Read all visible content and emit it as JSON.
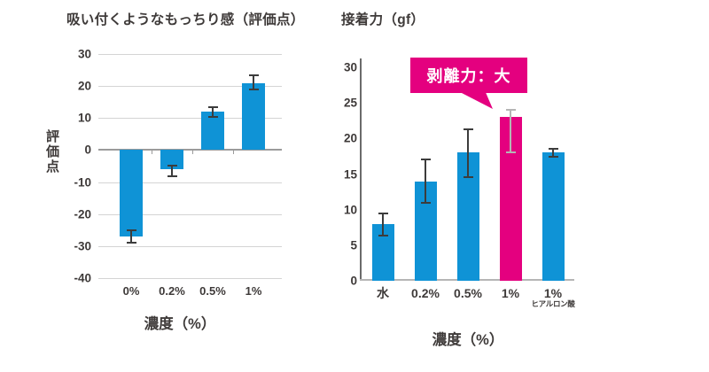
{
  "colors": {
    "blue": "#0f93d6",
    "pink": "#e4007f",
    "text": "#3e3a39",
    "grid": "#d4d4d4",
    "zero_line": "#9b9b9b",
    "axis": "#6b6b6b",
    "baseline": "#b5b5b5",
    "error": "#3c3c3c",
    "error_light": "#b5b5b5",
    "annotation_bg": "#e4007f",
    "annotation_text": "#ffffff"
  },
  "chart_data": [
    {
      "type": "bar",
      "title": "吸い付くようなもっちり感（評価点）",
      "xlabel": "濃度（%）",
      "ylabel": "評価点",
      "categories": [
        "0%",
        "0.2%",
        "0.5%",
        "1%"
      ],
      "values": [
        -27,
        -6,
        12,
        21
      ],
      "error_high": [
        -25,
        -4.8,
        13.5,
        23.3
      ],
      "error_low": [
        -29,
        -8.3,
        10.3,
        19
      ],
      "ylim": [
        -40,
        30
      ],
      "ytick_step": 10,
      "grid": true,
      "legend": "none",
      "bar_color": "#0f93d6"
    },
    {
      "type": "bar",
      "title": "接着力（gf）",
      "xlabel": "濃度（%）",
      "ylabel": "",
      "categories": [
        "水",
        "0.2%",
        "0.5%",
        "1%",
        "1%"
      ],
      "category_subs": [
        "",
        "",
        "",
        "",
        "ヒアルロン酸"
      ],
      "values": [
        8,
        14,
        18,
        23,
        18
      ],
      "error_high": [
        9.5,
        17,
        21.3,
        24,
        18.6
      ],
      "error_low": [
        6.3,
        11,
        14.6,
        18,
        17.4
      ],
      "ylim": [
        0,
        30
      ],
      "ytick_step": 5,
      "grid": false,
      "axis": true,
      "legend": "none",
      "bar_colors": [
        "#0f93d6",
        "#0f93d6",
        "#0f93d6",
        "#e4007f",
        "#0f93d6"
      ],
      "error_colors": [
        "#3c3c3c",
        "#3c3c3c",
        "#3c3c3c",
        "#b5b5b5",
        "#3c3c3c"
      ],
      "annotation": {
        "text": "剥離力：大",
        "target_category": "1%"
      }
    }
  ]
}
